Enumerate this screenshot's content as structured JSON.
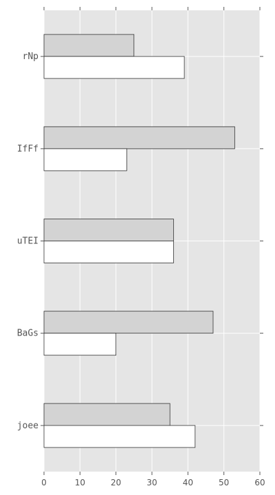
{
  "chart_data": {
    "type": "bar",
    "orientation": "horizontal",
    "categories": [
      "joee",
      "BaGs",
      "uTEI",
      "IfFf",
      "rNp"
    ],
    "series": [
      {
        "values": [
          35,
          47,
          36,
          53,
          25
        ],
        "color": "#d3d3d3"
      },
      {
        "values": [
          42,
          20,
          36,
          23,
          39
        ],
        "color": "#ffffff"
      }
    ],
    "xlim": [
      0,
      60
    ],
    "xticks": [
      0,
      10,
      20,
      30,
      40,
      50,
      60
    ],
    "grid": true,
    "background": "#e5e5e5",
    "grid_color": "#ffffff",
    "title": "",
    "xlabel": "",
    "ylabel": ""
  }
}
